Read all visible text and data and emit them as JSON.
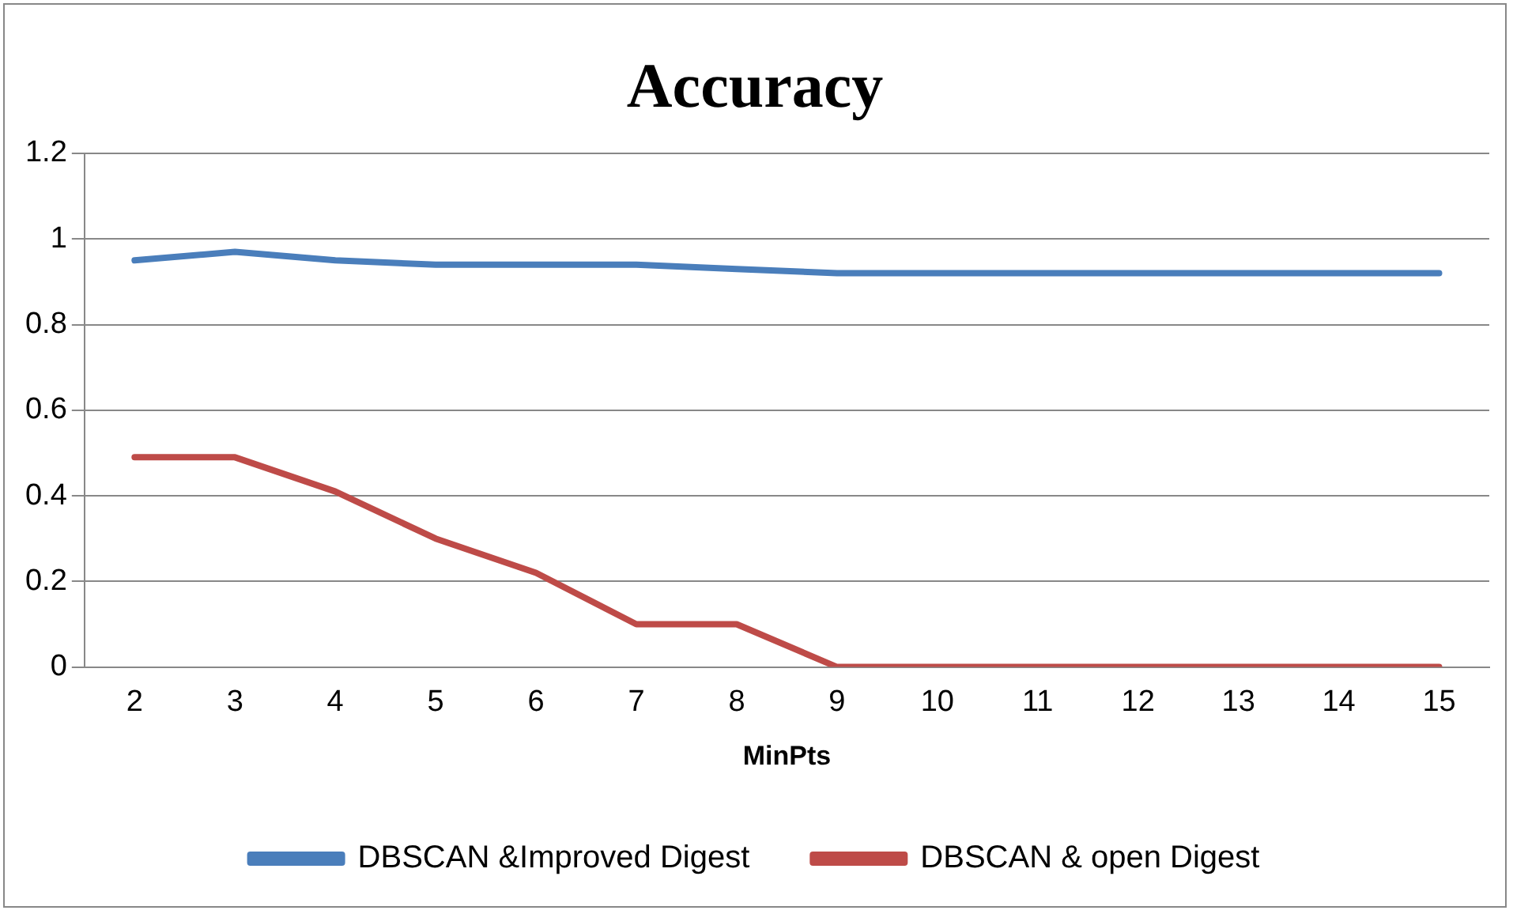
{
  "chart_data": {
    "type": "line",
    "title": "Accuracy",
    "xlabel": "MinPts",
    "categories": [
      "2",
      "3",
      "4",
      "5",
      "6",
      "7",
      "8",
      "9",
      "10",
      "11",
      "12",
      "13",
      "14",
      "15"
    ],
    "series": [
      {
        "name": "DBSCAN &Improved Digest",
        "color": "#4a7ebb",
        "values": [
          0.95,
          0.97,
          0.95,
          0.94,
          0.94,
          0.94,
          0.93,
          0.92,
          0.92,
          0.92,
          0.92,
          0.92,
          0.92,
          0.92
        ]
      },
      {
        "name": "DBSCAN & open Digest",
        "color": "#be4b48",
        "values": [
          0.49,
          0.49,
          0.41,
          0.3,
          0.22,
          0.1,
          0.1,
          0,
          0,
          0,
          0,
          0,
          0,
          0
        ]
      }
    ],
    "ylim": [
      0,
      1.2
    ],
    "yticks": [
      0,
      0.2,
      0.4,
      0.6,
      0.8,
      1,
      1.2
    ],
    "grid": "y",
    "legend": "bottom",
    "marker": "none",
    "line_style": "solid"
  }
}
